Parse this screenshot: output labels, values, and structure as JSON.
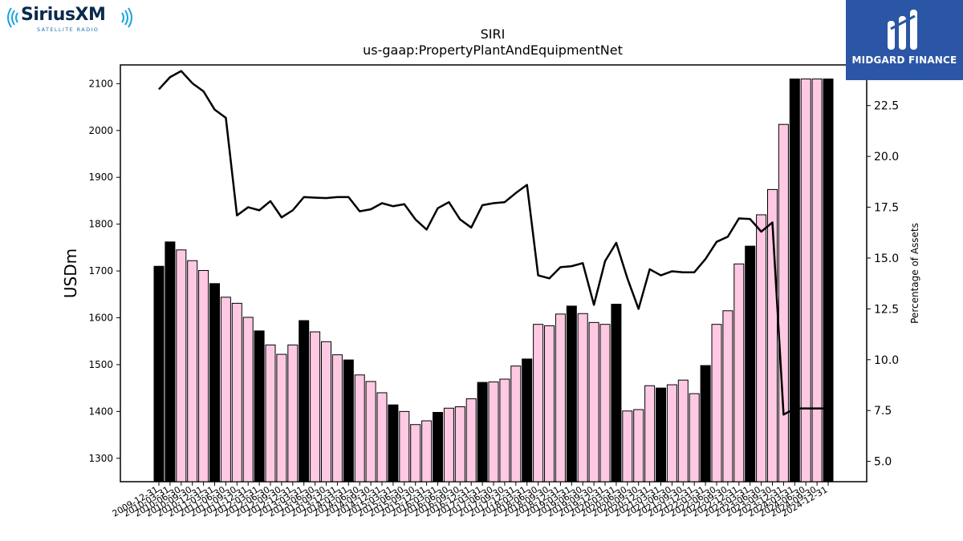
{
  "logos": {
    "left_brand": "SiriusXM",
    "left_sub": "SATELLITE RADIO",
    "right_brand": "MIDGARD FINANCE"
  },
  "colors": {
    "bar_highlight": "#000000",
    "bar_normal": "#ffc9e3",
    "line": "#000000",
    "midgard_bg": "#2b56a5",
    "sirius_blue": "#1aa3e0"
  },
  "chart_data": {
    "type": "bar",
    "title": "SIRI",
    "subtitle": "us-gaap:PropertyPlantAndEquipmentNet",
    "ylabel": "USDm",
    "y2label": "Percentage of Assets",
    "ylim": [
      1250,
      2140
    ],
    "y2lim": [
      4.0,
      24.5
    ],
    "yticks": [
      1300,
      1400,
      1500,
      1600,
      1700,
      1800,
      1900,
      2000,
      2100
    ],
    "y2ticks": [
      5.0,
      7.5,
      10.0,
      12.5,
      15.0,
      17.5,
      20.0,
      22.5
    ],
    "grid": false,
    "categories": [
      "2009-12-31",
      "2010-03-31",
      "2010-06-30",
      "2010-09-30",
      "2010-12-31",
      "2011-03-31",
      "2011-06-30",
      "2011-09-30",
      "2011-12-31",
      "2012-03-31",
      "2012-06-30",
      "2012-09-30",
      "2012-12-31",
      "2013-03-31",
      "2013-06-30",
      "2013-09-30",
      "2013-12-31",
      "2014-03-31",
      "2014-06-30",
      "2014-09-30",
      "2014-12-31",
      "2015-03-31",
      "2015-06-30",
      "2015-09-30",
      "2015-12-31",
      "2016-03-31",
      "2016-06-30",
      "2016-09-30",
      "2016-12-31",
      "2017-03-31",
      "2017-06-30",
      "2017-09-30",
      "2017-12-31",
      "2018-03-31",
      "2018-06-30",
      "2018-09-30",
      "2018-12-31",
      "2019-03-31",
      "2019-06-30",
      "2019-09-30",
      "2019-12-31",
      "2020-03-31",
      "2020-06-30",
      "2020-09-30",
      "2020-12-31",
      "2021-03-31",
      "2021-06-30",
      "2021-09-30",
      "2021-12-31",
      "2022-03-31",
      "2022-06-30",
      "2022-09-30",
      "2022-12-31",
      "2023-03-31",
      "2023-06-30",
      "2023-09-30",
      "2023-12-31",
      "2024-03-31",
      "2024-06-30",
      "2024-09-30",
      "2024-12-31"
    ],
    "highlight": [
      true,
      true,
      false,
      false,
      false,
      true,
      false,
      false,
      false,
      true,
      false,
      false,
      false,
      true,
      false,
      false,
      false,
      true,
      false,
      false,
      false,
      true,
      false,
      false,
      false,
      true,
      false,
      false,
      false,
      true,
      false,
      false,
      false,
      true,
      false,
      false,
      false,
      true,
      false,
      false,
      false,
      true,
      false,
      false,
      false,
      true,
      false,
      false,
      false,
      true,
      false,
      false,
      false,
      true,
      false,
      false,
      false,
      true,
      false,
      false,
      true
    ],
    "series": [
      {
        "values": [
          1710,
          1762,
          1745,
          1722,
          1701,
          1673,
          1644,
          1631,
          1601,
          1572,
          1542,
          1522,
          1542,
          1594,
          1570,
          1549,
          1521,
          1510,
          1478,
          1464,
          1440,
          1414,
          1400,
          1372,
          1380,
          1398,
          1407,
          1410,
          1427,
          1462,
          1463,
          1469,
          1497,
          1512,
          1586,
          1583,
          1608,
          1625,
          1609,
          1590,
          1586,
          1629,
          1401,
          1404,
          1455,
          1450,
          1457,
          1467,
          1438,
          1498,
          1586,
          1615,
          1715,
          1753,
          1820,
          1874,
          2013,
          2110,
          2110,
          2110,
          2110
        ]
      },
      {
        "axis": "right",
        "type": "line",
        "values": [
          23.3,
          23.9,
          24.2,
          23.6,
          23.2,
          22.3,
          21.9,
          17.1,
          17.5,
          17.35,
          17.8,
          17.0,
          17.35,
          18.0,
          17.97,
          17.95,
          18.0,
          18.0,
          17.3,
          17.4,
          17.7,
          17.55,
          17.65,
          16.9,
          16.4,
          17.45,
          17.75,
          16.9,
          16.5,
          17.6,
          17.7,
          17.75,
          18.2,
          18.6,
          14.15,
          14.0,
          14.55,
          14.6,
          14.75,
          12.7,
          14.85,
          15.75,
          14.0,
          12.5,
          14.45,
          14.15,
          14.35,
          14.3,
          14.3,
          14.95,
          15.8,
          16.05,
          16.95,
          16.92,
          16.3,
          16.75,
          7.3,
          7.6,
          7.6,
          7.6,
          7.6
        ]
      }
    ]
  }
}
